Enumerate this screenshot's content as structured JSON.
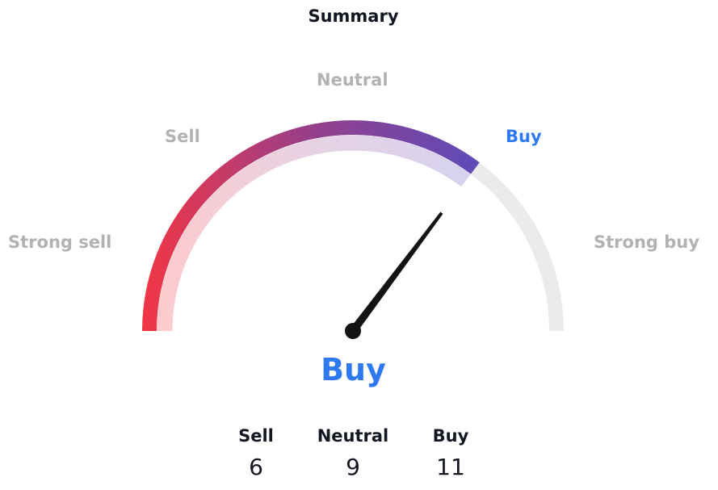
{
  "chart_data": {
    "type": "gauge",
    "title": "Summary",
    "scale_labels": [
      "Strong sell",
      "Sell",
      "Neutral",
      "Buy",
      "Strong buy"
    ],
    "active_label": "Buy",
    "needle_value": 0.41,
    "value_range": [
      -1,
      1
    ],
    "result": "Buy",
    "counts": [
      {
        "label": "Sell",
        "value": 6
      },
      {
        "label": "Neutral",
        "value": 9
      },
      {
        "label": "Buy",
        "value": 11
      }
    ],
    "colors": {
      "start": "#f23645",
      "end": "#5b4cba",
      "track": "#ebebeb",
      "active_text": "#2f7af3",
      "needle": "#131313"
    }
  }
}
